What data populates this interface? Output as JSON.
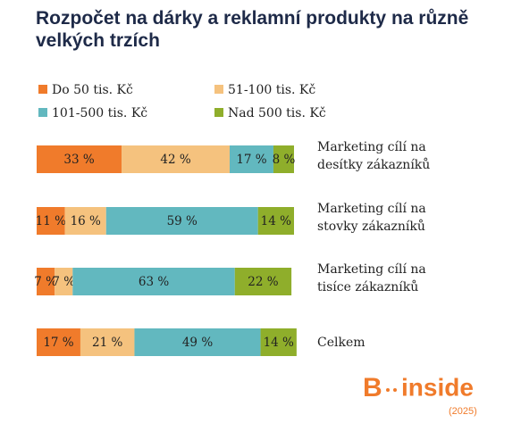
{
  "chart_data": {
    "type": "stacked-bar-horizontal",
    "title": "Rozpočet na dárky a reklamní produkty na různě velkých trzích",
    "categories": [
      "Marketing cílí na desítky zákazníků",
      "Marketing cílí na stovky zákazníků",
      "Marketing cílí na tisíce zákazníků",
      "Celkem"
    ],
    "series": [
      {
        "name": "Do 50 tis. Kč",
        "color": "#f07b2b",
        "values": [
          33,
          11,
          7,
          17
        ],
        "value_labels": [
          "33 %",
          "11 %",
          "7 %",
          "17 %"
        ]
      },
      {
        "name": "51-100 tis. Kč",
        "color": "#f5c27e",
        "values": [
          42,
          16,
          7,
          21
        ],
        "value_labels": [
          "42 %",
          "16 %",
          "7 %",
          "21 %"
        ]
      },
      {
        "name": "101-500 tis. Kč",
        "color": "#62b8bf",
        "values": [
          17,
          59,
          63,
          49
        ],
        "value_labels": [
          "17 %",
          "59 %",
          "63 %",
          "49 %"
        ]
      },
      {
        "name": "Nad 500 tis. Kč",
        "color": "#8fae2b",
        "values": [
          8,
          14,
          22,
          14
        ],
        "value_labels": [
          "8 %",
          "14 %",
          "22 %",
          "14 %"
        ]
      }
    ],
    "xlim": [
      0,
      100
    ]
  },
  "logo": {
    "letter": "B",
    "word": "inside",
    "year": "(2025)"
  }
}
